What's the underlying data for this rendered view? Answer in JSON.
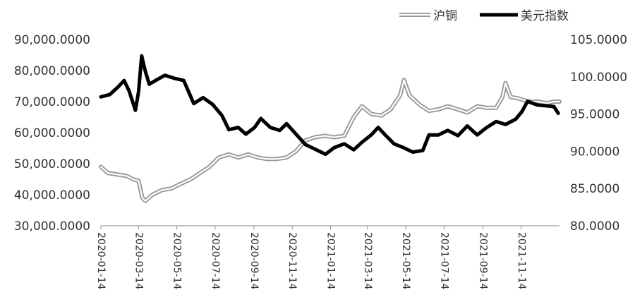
{
  "chart_data": {
    "type": "line",
    "title": "",
    "xlabel": "",
    "ylabel_left": "",
    "ylabel_right": "",
    "grid": false,
    "legend_position": "top-right",
    "x_tick_labels": [
      "2020-01-14",
      "2020-03-14",
      "2020-05-14",
      "2020-07-14",
      "2020-09-14",
      "2020-11-14",
      "2021-01-14",
      "2021-03-14",
      "2021-05-14",
      "2021-07-14",
      "2021-09-14",
      "2021-11-14"
    ],
    "y_left": {
      "ylim": [
        30000,
        90000
      ],
      "ticks": [
        30000,
        40000,
        50000,
        60000,
        70000,
        80000,
        90000
      ],
      "tick_labels": [
        "30,000.0000",
        "40,000.0000",
        "50,000.0000",
        "60,000.0000",
        "70,000.0000",
        "80,000.0000",
        "90,000.0000"
      ]
    },
    "y_right": {
      "ylim": [
        80,
        105
      ],
      "ticks": [
        80,
        85,
        90,
        95,
        100,
        105
      ],
      "tick_labels": [
        "80.0000",
        "85.0000",
        "90.0000",
        "95.0000",
        "100.0000",
        "105.0000"
      ]
    },
    "series": [
      {
        "name": "沪铜",
        "axis": "left",
        "color": "#999999",
        "style": "double-outline",
        "points": [
          [
            "2020-01-14",
            49000
          ],
          [
            "2020-01-25",
            47000
          ],
          [
            "2020-02-10",
            46500
          ],
          [
            "2020-02-25",
            46000
          ],
          [
            "2020-03-05",
            45000
          ],
          [
            "2020-03-14",
            44500
          ],
          [
            "2020-03-20",
            39000
          ],
          [
            "2020-03-25",
            38000
          ],
          [
            "2020-04-05",
            40000
          ],
          [
            "2020-04-20",
            41500
          ],
          [
            "2020-05-05",
            42000
          ],
          [
            "2020-05-20",
            43500
          ],
          [
            "2020-06-05",
            45000
          ],
          [
            "2020-06-20",
            47000
          ],
          [
            "2020-07-05",
            49000
          ],
          [
            "2020-07-20",
            52000
          ],
          [
            "2020-08-05",
            53000
          ],
          [
            "2020-08-20",
            52000
          ],
          [
            "2020-09-05",
            53000
          ],
          [
            "2020-09-20",
            52000
          ],
          [
            "2020-10-05",
            51500
          ],
          [
            "2020-10-20",
            51500
          ],
          [
            "2020-11-05",
            52000
          ],
          [
            "2020-11-20",
            54000
          ],
          [
            "2020-12-05",
            57500
          ],
          [
            "2020-12-20",
            58500
          ],
          [
            "2021-01-05",
            59000
          ],
          [
            "2021-01-20",
            58500
          ],
          [
            "2021-02-05",
            59000
          ],
          [
            "2021-02-20",
            65000
          ],
          [
            "2021-03-05",
            68500
          ],
          [
            "2021-03-20",
            66000
          ],
          [
            "2021-04-05",
            65500
          ],
          [
            "2021-04-20",
            67500
          ],
          [
            "2021-05-05",
            72000
          ],
          [
            "2021-05-11",
            77000
          ],
          [
            "2021-05-20",
            72000
          ],
          [
            "2021-06-05",
            69000
          ],
          [
            "2021-06-20",
            67000
          ],
          [
            "2021-07-05",
            67500
          ],
          [
            "2021-07-20",
            68500
          ],
          [
            "2021-08-05",
            67500
          ],
          [
            "2021-08-20",
            66500
          ],
          [
            "2021-09-05",
            68500
          ],
          [
            "2021-09-20",
            68000
          ],
          [
            "2021-10-05",
            68000
          ],
          [
            "2021-10-15",
            71500
          ],
          [
            "2021-10-20",
            76000
          ],
          [
            "2021-10-28",
            71500
          ],
          [
            "2021-11-10",
            71000
          ],
          [
            "2021-11-25",
            70000
          ],
          [
            "2021-12-10",
            70000
          ],
          [
            "2021-12-25",
            69500
          ],
          [
            "2022-01-05",
            70000
          ],
          [
            "2022-01-14",
            70000
          ]
        ]
      },
      {
        "name": "美元指数",
        "axis": "right",
        "color": "#000000",
        "style": "solid-thick",
        "points": [
          [
            "2020-01-14",
            97.3
          ],
          [
            "2020-01-28",
            97.6
          ],
          [
            "2020-02-10",
            98.6
          ],
          [
            "2020-02-20",
            99.5
          ],
          [
            "2020-02-28",
            98.1
          ],
          [
            "2020-03-09",
            95.5
          ],
          [
            "2020-03-14",
            98.0
          ],
          [
            "2020-03-19",
            102.8
          ],
          [
            "2020-03-24",
            101.0
          ],
          [
            "2020-03-31",
            99.0
          ],
          [
            "2020-04-10",
            99.5
          ],
          [
            "2020-04-25",
            100.2
          ],
          [
            "2020-05-10",
            99.8
          ],
          [
            "2020-05-25",
            99.5
          ],
          [
            "2020-06-10",
            96.4
          ],
          [
            "2020-06-25",
            97.2
          ],
          [
            "2020-07-10",
            96.3
          ],
          [
            "2020-07-25",
            94.8
          ],
          [
            "2020-08-05",
            92.9
          ],
          [
            "2020-08-20",
            93.2
          ],
          [
            "2020-09-01",
            92.3
          ],
          [
            "2020-09-15",
            93.2
          ],
          [
            "2020-09-25",
            94.4
          ],
          [
            "2020-10-10",
            93.2
          ],
          [
            "2020-10-25",
            92.8
          ],
          [
            "2020-11-05",
            93.7
          ],
          [
            "2020-11-20",
            92.3
          ],
          [
            "2020-12-05",
            90.9
          ],
          [
            "2020-12-20",
            90.3
          ],
          [
            "2021-01-06",
            89.6
          ],
          [
            "2021-01-20",
            90.5
          ],
          [
            "2021-02-05",
            91.0
          ],
          [
            "2021-02-20",
            90.2
          ],
          [
            "2021-03-05",
            91.2
          ],
          [
            "2021-03-20",
            92.2
          ],
          [
            "2021-03-31",
            93.2
          ],
          [
            "2021-04-10",
            92.3
          ],
          [
            "2021-04-25",
            91.0
          ],
          [
            "2021-05-10",
            90.5
          ],
          [
            "2021-05-25",
            89.9
          ],
          [
            "2021-06-10",
            90.1
          ],
          [
            "2021-06-20",
            92.2
          ],
          [
            "2021-07-05",
            92.2
          ],
          [
            "2021-07-20",
            92.8
          ],
          [
            "2021-08-05",
            92.1
          ],
          [
            "2021-08-20",
            93.4
          ],
          [
            "2021-09-05",
            92.2
          ],
          [
            "2021-09-20",
            93.2
          ],
          [
            "2021-10-05",
            94.0
          ],
          [
            "2021-10-20",
            93.6
          ],
          [
            "2021-11-05",
            94.3
          ],
          [
            "2021-11-15",
            95.3
          ],
          [
            "2021-11-24",
            96.7
          ],
          [
            "2021-12-10",
            96.2
          ],
          [
            "2021-12-25",
            96.1
          ],
          [
            "2022-01-05",
            96.0
          ],
          [
            "2022-01-12",
            95.1
          ]
        ]
      }
    ]
  }
}
